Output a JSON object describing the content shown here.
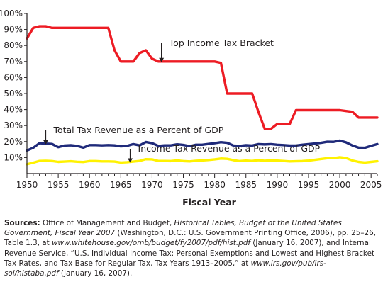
{
  "chart_data": {
    "type": "line",
    "xlabel": "Fiscal Year",
    "ylabel": "",
    "xlim": [
      1950,
      2006
    ],
    "ylim": [
      0,
      100
    ],
    "x_ticks": [
      1950,
      1955,
      1960,
      1965,
      1970,
      1975,
      1980,
      1985,
      1990,
      1995,
      2000,
      2005
    ],
    "x_tick_labels": [
      "1950",
      "1955",
      "1960",
      "1965",
      "1970",
      "1975",
      "1980",
      "1985",
      "1990",
      "1995",
      "2000",
      "2005"
    ],
    "y_ticks": [
      10,
      20,
      30,
      40,
      50,
      60,
      70,
      80,
      90,
      100
    ],
    "y_tick_labels": [
      "10%",
      "20%",
      "30%",
      "40%",
      "50%",
      "60%",
      "70%",
      "80%",
      "90%",
      "100%"
    ],
    "grid": false,
    "series": [
      {
        "name": "Top Income Tax Bracket",
        "color": "#ed1c24",
        "x": [
          1950,
          1951,
          1952,
          1953,
          1954,
          1955,
          1956,
          1957,
          1958,
          1959,
          1960,
          1961,
          1962,
          1963,
          1964,
          1965,
          1966,
          1967,
          1968,
          1969,
          1970,
          1971,
          1972,
          1973,
          1974,
          1975,
          1976,
          1977,
          1978,
          1979,
          1980,
          1981,
          1982,
          1983,
          1984,
          1985,
          1986,
          1987,
          1988,
          1989,
          1990,
          1991,
          1992,
          1993,
          1994,
          1995,
          1996,
          1997,
          1998,
          1999,
          2000,
          2001,
          2002,
          2003,
          2004,
          2005,
          2006
        ],
        "values": [
          84.4,
          91,
          92,
          92,
          91,
          91,
          91,
          91,
          91,
          91,
          91,
          91,
          91,
          91,
          77,
          70,
          70,
          70,
          75.25,
          77,
          71.75,
          70,
          70,
          70,
          70,
          70,
          70,
          70,
          70,
          70,
          70,
          69.13,
          50,
          50,
          50,
          50,
          50,
          38.5,
          28,
          28,
          31,
          31,
          31,
          39.6,
          39.6,
          39.6,
          39.6,
          39.6,
          39.6,
          39.6,
          39.6,
          39.1,
          38.6,
          35,
          35,
          35,
          35
        ]
      },
      {
        "name": "Total Tax Revenue as a Percent of GDP",
        "color": "#1f2a7a",
        "x": [
          1950,
          1951,
          1952,
          1953,
          1954,
          1955,
          1956,
          1957,
          1958,
          1959,
          1960,
          1961,
          1962,
          1963,
          1964,
          1965,
          1966,
          1967,
          1968,
          1969,
          1970,
          1971,
          1972,
          1973,
          1974,
          1975,
          1976,
          1977,
          1978,
          1979,
          1980,
          1981,
          1982,
          1983,
          1984,
          1985,
          1986,
          1987,
          1988,
          1989,
          1990,
          1991,
          1992,
          1993,
          1994,
          1995,
          1996,
          1997,
          1998,
          1999,
          2000,
          2001,
          2002,
          2003,
          2004,
          2005,
          2006
        ],
        "values": [
          14.4,
          16.1,
          19,
          18.7,
          18.5,
          16.5,
          17.5,
          17.7,
          17.3,
          16.2,
          17.8,
          17.8,
          17.6,
          17.8,
          17.6,
          17,
          17.3,
          18.4,
          17.6,
          19.7,
          19,
          17.3,
          17.6,
          17.6,
          18.3,
          17.9,
          17.1,
          18,
          18,
          18.5,
          19,
          19.6,
          19.2,
          17.5,
          17.3,
          17.7,
          17.5,
          18.4,
          18.2,
          18.4,
          18,
          17.8,
          17.5,
          17.5,
          18,
          18.4,
          18.8,
          19.2,
          19.9,
          19.8,
          20.6,
          19.5,
          17.6,
          16.2,
          16.1,
          17.3,
          18.4
        ]
      },
      {
        "name": "Income Tax Revenue as a Percent of GDP",
        "color": "#fff200",
        "x": [
          1950,
          1951,
          1952,
          1953,
          1954,
          1955,
          1956,
          1957,
          1958,
          1959,
          1960,
          1961,
          1962,
          1963,
          1964,
          1965,
          1966,
          1967,
          1968,
          1969,
          1970,
          1971,
          1972,
          1973,
          1974,
          1975,
          1976,
          1977,
          1978,
          1979,
          1980,
          1981,
          1982,
          1983,
          1984,
          1985,
          1986,
          1987,
          1988,
          1989,
          1990,
          1991,
          1992,
          1993,
          1994,
          1995,
          1996,
          1997,
          1998,
          1999,
          2000,
          2001,
          2002,
          2003,
          2004,
          2005,
          2006
        ],
        "values": [
          5.8,
          6.8,
          7.9,
          8,
          7.8,
          7.3,
          7.5,
          7.7,
          7.4,
          7.2,
          7.8,
          7.8,
          7.6,
          7.6,
          7.5,
          6.9,
          7.1,
          7.5,
          7.9,
          9,
          8.9,
          7.9,
          7.9,
          7.8,
          8.2,
          7.8,
          7.6,
          8,
          8.2,
          8.5,
          8.9,
          9.4,
          9.2,
          8.4,
          7.8,
          8.1,
          7.9,
          8.4,
          8,
          8.3,
          8.1,
          7.9,
          7.6,
          7.7,
          7.8,
          8.1,
          8.6,
          9.1,
          9.6,
          9.6,
          10.2,
          9.7,
          8.2,
          7.3,
          6.9,
          7.3,
          7.7
        ]
      }
    ],
    "annotations": [
      {
        "text": "Top Income Tax Bracket",
        "series": 0,
        "arrow_x": 1971.5
      },
      {
        "text": "Total Tax Revenue as a Percent of GDP",
        "series": 1,
        "arrow_x": 1953
      },
      {
        "text": "Income Tax Revenue as a Percent of GDP",
        "series": 2,
        "arrow_x": 1966.5
      }
    ]
  },
  "source_note": {
    "lead": "Sources:",
    "segments": [
      {
        "text": " Office of Management and Budget, ",
        "italic": false
      },
      {
        "text": "Historical Tables, Budget of the United States Government, Fiscal Year 2007",
        "italic": true
      },
      {
        "text": " (Washington, D.C.: U.S. Government Printing Office, 2006), pp. 25–26, Table 1.3, at ",
        "italic": false
      },
      {
        "text": "www.whitehouse.gov/omb/budget/fy2007/pdf/hist.pdf",
        "italic": true
      },
      {
        "text": " (January 16, 2007), and Internal Revenue Service, “U.S. Individual Income Tax: Personal Exemptions and Lowest and Highest Bracket Tax Rates, and Tax Base for Regular Tax, Tax Years 1913–2005,” at ",
        "italic": false
      },
      {
        "text": "www.irs.gov/pub/irs-soi/histaba.pdf",
        "italic": true
      },
      {
        "text": " (January 16, 2007).",
        "italic": false
      }
    ]
  }
}
